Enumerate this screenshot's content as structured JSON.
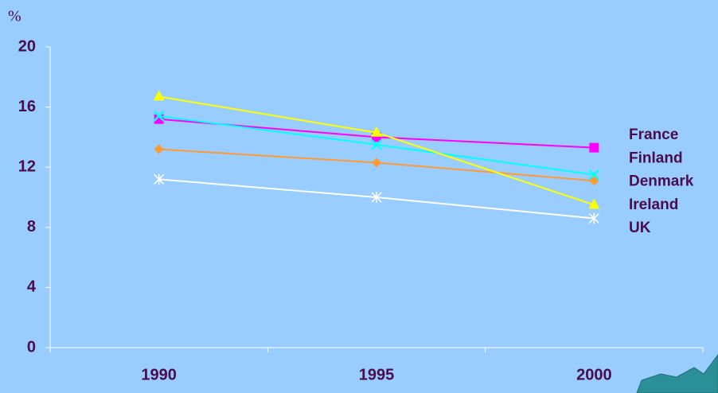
{
  "chart_data": {
    "type": "line",
    "y_unit": "%",
    "categories": [
      "1990",
      "1995",
      "2000"
    ],
    "series": [
      {
        "name": "France",
        "color": "#ff00ff",
        "marker": "square",
        "values": [
          15.2,
          14.0,
          13.3
        ]
      },
      {
        "name": "Finland",
        "color": "#00ffff",
        "marker": "x",
        "values": [
          15.4,
          13.5,
          11.5
        ]
      },
      {
        "name": "Denmark",
        "color": "#ff9933",
        "marker": "diamond",
        "values": [
          13.2,
          12.3,
          11.1
        ]
      },
      {
        "name": "Ireland",
        "color": "#ffff00",
        "marker": "triangle",
        "values": [
          16.7,
          14.3,
          9.5
        ]
      },
      {
        "name": "UK",
        "color": "#ffffff",
        "marker": "asterisk",
        "values": [
          11.2,
          10.0,
          8.6
        ]
      }
    ],
    "ylim": [
      0,
      20
    ],
    "yticks": [
      0,
      4,
      8,
      12,
      16,
      20
    ],
    "grid": false,
    "legend": "right"
  }
}
